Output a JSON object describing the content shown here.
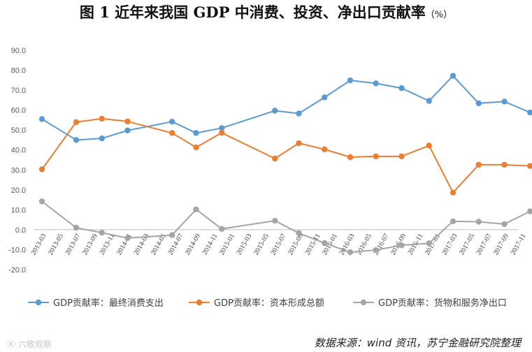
{
  "chart_data": {
    "type": "line",
    "title": "图 1  近年来我国 GDP 中消费、投资、净出口贡献率",
    "title_unit": "（%）",
    "ylim": [
      -20,
      90
    ],
    "yticks": [
      "90.0",
      "80.0",
      "70.0",
      "60.0",
      "50.0",
      "40.0",
      "30.0",
      "20.0",
      "10.0",
      "0.0",
      "-10.0",
      "-20.0"
    ],
    "categories": [
      "2013-03",
      "2013-05",
      "2013-07",
      "2013-09",
      "2013-11",
      "2014-01",
      "2014-03",
      "2014-05",
      "2014-07",
      "2014-09",
      "2014-11",
      "2015-01",
      "2015-03",
      "2015-05",
      "2015-07",
      "2015-09",
      "2015-11",
      "2016-01",
      "2016-03",
      "2016-05",
      "2016-07",
      "2016-09",
      "2016-11",
      "2017-01",
      "2017-03",
      "2017-05",
      "2017-07",
      "2017-09",
      "2017-11"
    ],
    "series": [
      {
        "name": "GDP贡献率：最终消费支出",
        "color": "#5b9bd5",
        "points": [
          [
            0,
            55.5
          ],
          [
            1,
            45.0
          ],
          [
            2,
            45.8
          ],
          [
            3,
            49.8
          ],
          [
            4,
            54.2
          ],
          [
            5,
            48.5
          ],
          [
            6,
            51.0
          ],
          [
            7,
            59.7
          ],
          [
            8,
            58.3
          ],
          [
            9,
            66.4
          ],
          [
            10,
            74.9
          ],
          [
            11,
            73.4
          ],
          [
            12,
            71.0
          ],
          [
            13,
            64.6
          ],
          [
            14,
            77.2
          ],
          [
            15,
            63.4
          ],
          [
            16,
            64.3
          ],
          [
            17,
            58.8
          ]
        ]
      },
      {
        "name": "GDP贡献率：资本形成总额",
        "color": "#ed7d31",
        "points": [
          [
            0,
            30.3
          ],
          [
            1,
            54.0
          ],
          [
            2,
            55.7
          ],
          [
            3,
            54.3
          ],
          [
            4,
            48.5
          ],
          [
            5,
            41.3
          ],
          [
            6,
            48.6
          ],
          [
            7,
            35.7
          ],
          [
            8,
            43.4
          ],
          [
            9,
            40.3
          ],
          [
            10,
            36.4
          ],
          [
            11,
            36.8
          ],
          [
            12,
            36.8
          ],
          [
            13,
            42.2
          ],
          [
            14,
            18.6
          ],
          [
            15,
            32.6
          ],
          [
            16,
            32.6
          ],
          [
            17,
            32.0
          ]
        ]
      },
      {
        "name": "GDP贡献率：货物和服务净出口",
        "color": "#a5a5a5",
        "points": [
          [
            0,
            14.2
          ],
          [
            1,
            1.0
          ],
          [
            2,
            -1.5
          ],
          [
            3,
            -4.2
          ],
          [
            4,
            -2.7
          ],
          [
            5,
            10.2
          ],
          [
            6,
            0.4
          ],
          [
            7,
            4.5
          ],
          [
            8,
            -1.7
          ],
          [
            9,
            -6.7
          ],
          [
            10,
            -11.3
          ],
          [
            11,
            -10.2
          ],
          [
            12,
            -7.8
          ],
          [
            13,
            -6.8
          ],
          [
            14,
            4.2
          ],
          [
            15,
            4.0
          ],
          [
            16,
            2.8
          ],
          [
            17,
            9.2
          ]
        ]
      }
    ],
    "source": "数据来源：wind 资讯，苏宁金融研究院整理",
    "watermark": "Ⓚ 六敬观察"
  }
}
